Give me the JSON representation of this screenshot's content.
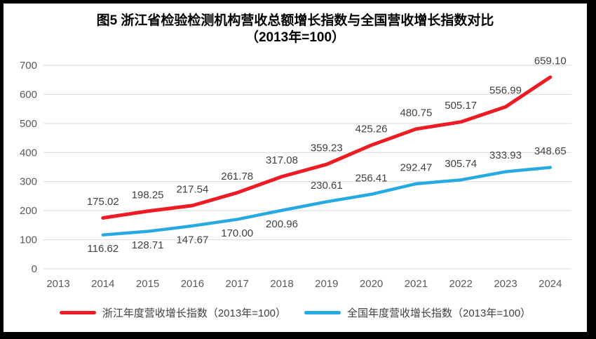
{
  "chart_data": {
    "type": "line",
    "title": "图5  浙江省检验检测机构营收总额增长指数与全国营收增长指数对比",
    "subtitle": "（2013年=100）",
    "categories": [
      "2013",
      "2014",
      "2015",
      "2016",
      "2017",
      "2018",
      "2019",
      "2020",
      "2021",
      "2022",
      "2023",
      "2024"
    ],
    "series": [
      {
        "name": "浙江年度营收增长指数（2013年=100）",
        "color": "#ED1C24",
        "start_index": 1,
        "values": [
          175.02,
          198.25,
          217.54,
          261.78,
          317.08,
          359.23,
          425.26,
          480.75,
          505.17,
          556.99,
          659.1
        ],
        "label_position": "above"
      },
      {
        "name": "全国年度营收增长指数（2013年=100）",
        "color": "#27AAE1",
        "start_index": 1,
        "values": [
          116.62,
          128.71,
          147.67,
          170.0,
          200.96,
          230.61,
          256.41,
          292.47,
          305.74,
          333.93,
          348.65
        ],
        "label_positions": [
          "below",
          "below",
          "below",
          "below",
          "below",
          "above",
          "above",
          "above",
          "above",
          "above",
          "above"
        ]
      }
    ],
    "ylim": [
      0,
      700
    ],
    "ytick_step": 100,
    "grid": true,
    "legend_position": "bottom",
    "grid_color": "#D9D9D9",
    "axis_tick_color": "#595959",
    "data_label_color": "#404040"
  }
}
